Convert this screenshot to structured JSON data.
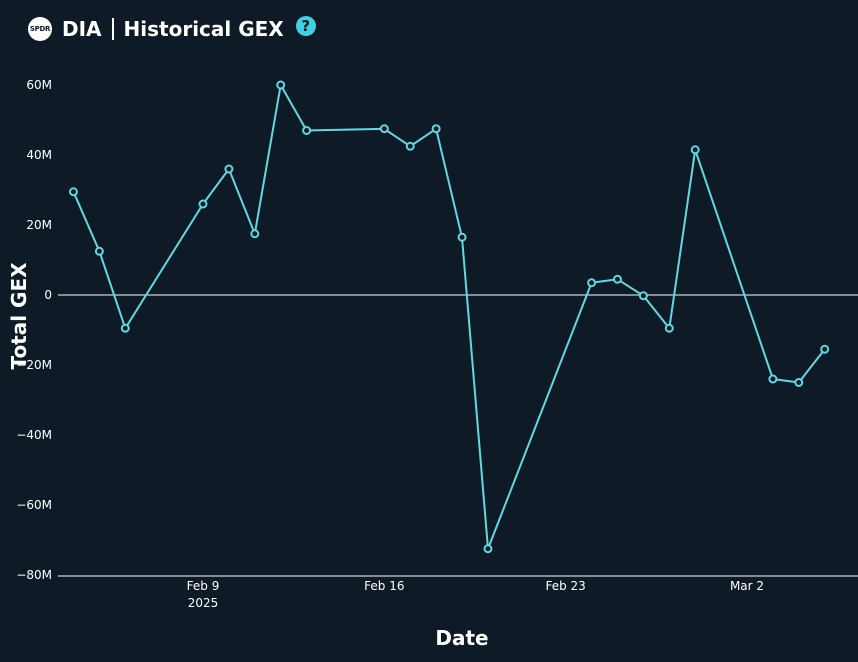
{
  "header": {
    "logo_text": "SPDR",
    "ticker": "DIA",
    "title": "Historical GEX",
    "help_icon": "?"
  },
  "colors": {
    "background": "#0f1a27",
    "line": "#63d7e2",
    "text": "#ffffff"
  },
  "chart_data": {
    "type": "line",
    "title": "Historical GEX",
    "xlabel": "Date",
    "ylabel": "Total GEX",
    "ylim": [
      -80,
      60
    ],
    "y_unit": "M",
    "y_ticks": [
      {
        "value": 60,
        "label": "60M"
      },
      {
        "value": 40,
        "label": "40M"
      },
      {
        "value": 20,
        "label": "20M"
      },
      {
        "value": 0,
        "label": "0"
      },
      {
        "value": -20,
        "label": "−20M"
      },
      {
        "value": -40,
        "label": "−40M"
      },
      {
        "value": -60,
        "label": "−60M"
      },
      {
        "value": -80,
        "label": "−80M"
      }
    ],
    "x_ticks": [
      {
        "date": "2025-02-09",
        "label": "Feb 9",
        "sublabel": "2025"
      },
      {
        "date": "2025-02-16",
        "label": "Feb 16",
        "sublabel": ""
      },
      {
        "date": "2025-02-23",
        "label": "Feb 23",
        "sublabel": ""
      },
      {
        "date": "2025-03-02",
        "label": "Mar 2",
        "sublabel": ""
      }
    ],
    "series": [
      {
        "points": [
          {
            "x": "2025-02-04",
            "y": 29.5
          },
          {
            "x": "2025-02-05",
            "y": 12.5
          },
          {
            "x": "2025-02-06",
            "y": -9.5
          },
          {
            "x": "2025-02-09",
            "y": 26
          },
          {
            "x": "2025-02-10",
            "y": 36
          },
          {
            "x": "2025-02-11",
            "y": 17.5
          },
          {
            "x": "2025-02-12",
            "y": 60
          },
          {
            "x": "2025-02-13",
            "y": 47
          },
          {
            "x": "2025-02-16",
            "y": 47.5
          },
          {
            "x": "2025-02-17",
            "y": 42.5
          },
          {
            "x": "2025-02-18",
            "y": 47.5
          },
          {
            "x": "2025-02-19",
            "y": 16.5
          },
          {
            "x": "2025-02-20",
            "y": -72.5
          },
          {
            "x": "2025-02-24",
            "y": 3.5
          },
          {
            "x": "2025-02-25",
            "y": 4.5
          },
          {
            "x": "2025-02-26",
            "y": -0.2
          },
          {
            "x": "2025-02-27",
            "y": -9.5
          },
          {
            "x": "2025-02-28",
            "y": 41.5
          },
          {
            "x": "2025-03-03",
            "y": -24
          },
          {
            "x": "2025-03-04",
            "y": -25
          },
          {
            "x": "2025-03-05",
            "y": -15.5
          }
        ]
      }
    ]
  }
}
